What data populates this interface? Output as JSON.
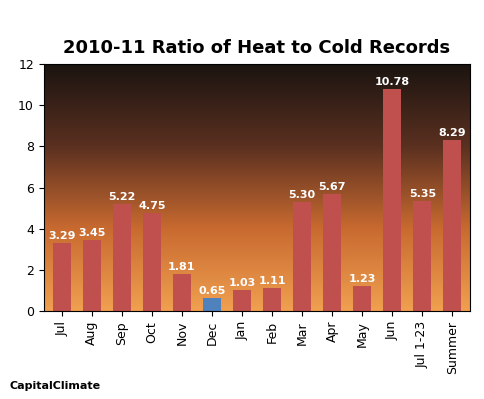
{
  "chart_data": {
    "type": "bar",
    "title": "2010-11 Ratio of Heat to Cold Records",
    "categories": [
      "Jul",
      "Aug",
      "Sep",
      "Oct",
      "Nov",
      "Dec",
      "Jan",
      "Feb",
      "Mar",
      "Apr",
      "May",
      "Jun",
      "Jul 1-23",
      "Summer"
    ],
    "values": [
      3.29,
      3.45,
      5.22,
      4.75,
      1.81,
      0.65,
      1.03,
      1.11,
      5.3,
      5.67,
      1.23,
      10.78,
      5.35,
      8.29
    ],
    "value_labels": [
      "3.29",
      "3.45",
      "5.22",
      "4.75",
      "1.81",
      "0.65",
      "1.03",
      "1.11",
      "5.30",
      "5.67",
      "1.23",
      "10.78",
      "5.35",
      "8.29"
    ],
    "colors": [
      "#c0504d",
      "#c0504d",
      "#c0504d",
      "#c0504d",
      "#c0504d",
      "#4f81bd",
      "#c0504d",
      "#c0504d",
      "#c0504d",
      "#c0504d",
      "#c0504d",
      "#c0504d",
      "#c0504d",
      "#c0504d"
    ],
    "ylim": [
      0,
      12
    ],
    "yticks": [
      0,
      2,
      4,
      6,
      8,
      10,
      12
    ],
    "grid": false,
    "data_labels": true,
    "annotations": [
      "CapitalClimate"
    ]
  }
}
